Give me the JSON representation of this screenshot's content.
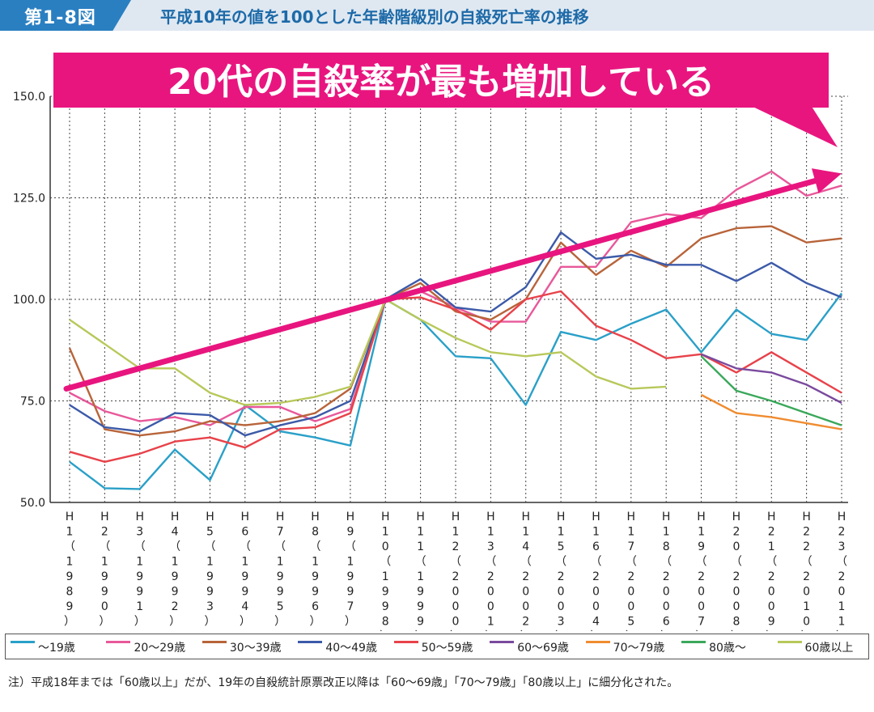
{
  "header": {
    "figure_no": "第1-8図",
    "title": "平成10年の値を100とした年齢階級別の自殺死亡率の推移"
  },
  "annotation": {
    "text": "20代の自殺率が最も増加している",
    "bg_color": "#e8157f",
    "arrow_color": "#e8157f",
    "arrow_from": {
      "x": "H1",
      "y": 78
    },
    "arrow_to": {
      "x": "H23",
      "y": 131
    }
  },
  "note": "注）平成18年までは「60歳以上」だが、19年の自殺統計原票改正以降は「60～69歳」「70～79歳」「80歳以上」に細分化された。",
  "chart_data": {
    "type": "line",
    "title": "平成10年の値を100とした年齢階級別の自殺死亡率の推移",
    "xlabel": "",
    "ylabel": "",
    "ylim": [
      50,
      150
    ],
    "yticks": [
      "50.0",
      "75.0",
      "100.0",
      "125.0",
      "150.0"
    ],
    "grid": true,
    "legend_position": "bottom",
    "categories": [
      "H1",
      "H2",
      "H3",
      "H4",
      "H5",
      "H6",
      "H7",
      "H8",
      "H9",
      "H10",
      "H11",
      "H12",
      "H13",
      "H14",
      "H15",
      "H16",
      "H17",
      "H18",
      "H19",
      "H20",
      "H21",
      "H22",
      "H23"
    ],
    "category_labels": [
      [
        "H",
        "1",
        "（",
        "1",
        "9",
        "8",
        "9",
        "）"
      ],
      [
        "H",
        "2",
        "（",
        "1",
        "9",
        "9",
        "0",
        "）"
      ],
      [
        "H",
        "3",
        "（",
        "1",
        "9",
        "9",
        "1",
        "）"
      ],
      [
        "H",
        "4",
        "（",
        "1",
        "9",
        "9",
        "2",
        "）"
      ],
      [
        "H",
        "5",
        "（",
        "1",
        "9",
        "9",
        "3",
        "）"
      ],
      [
        "H",
        "6",
        "（",
        "1",
        "9",
        "9",
        "4",
        "）"
      ],
      [
        "H",
        "7",
        "（",
        "1",
        "9",
        "9",
        "5",
        "）"
      ],
      [
        "H",
        "8",
        "（",
        "1",
        "9",
        "9",
        "6",
        "）"
      ],
      [
        "H",
        "9",
        "（",
        "1",
        "9",
        "9",
        "7",
        "）"
      ],
      [
        "H",
        "1",
        "0",
        "（",
        "1",
        "9",
        "9",
        "8",
        "）"
      ],
      [
        "H",
        "1",
        "1",
        "（",
        "1",
        "9",
        "9",
        "9",
        "）"
      ],
      [
        "H",
        "1",
        "2",
        "（",
        "2",
        "0",
        "0",
        "0",
        "）"
      ],
      [
        "H",
        "1",
        "3",
        "（",
        "2",
        "0",
        "0",
        "1",
        "）"
      ],
      [
        "H",
        "1",
        "4",
        "（",
        "2",
        "0",
        "0",
        "2",
        "）"
      ],
      [
        "H",
        "1",
        "5",
        "（",
        "2",
        "0",
        "0",
        "3",
        "）"
      ],
      [
        "H",
        "1",
        "6",
        "（",
        "2",
        "0",
        "0",
        "4",
        "）"
      ],
      [
        "H",
        "1",
        "7",
        "（",
        "2",
        "0",
        "0",
        "5",
        "）"
      ],
      [
        "H",
        "1",
        "8",
        "（",
        "2",
        "0",
        "0",
        "6",
        "）"
      ],
      [
        "H",
        "1",
        "9",
        "（",
        "2",
        "0",
        "0",
        "7",
        "）"
      ],
      [
        "H",
        "2",
        "0",
        "（",
        "2",
        "0",
        "0",
        "8",
        "）"
      ],
      [
        "H",
        "2",
        "1",
        "（",
        "2",
        "0",
        "0",
        "9",
        "）"
      ],
      [
        "H",
        "2",
        "2",
        "（",
        "2",
        "0",
        "1",
        "0",
        "）"
      ],
      [
        "H",
        "2",
        "3",
        "（",
        "2",
        "0",
        "1",
        "1",
        "）"
      ]
    ],
    "series": [
      {
        "name": "～19歳",
        "color": "#2aa0c8",
        "values": [
          60,
          53.5,
          53.3,
          63,
          55.5,
          74,
          67.5,
          66,
          64,
          100,
          95,
          86,
          85.5,
          74,
          92,
          90,
          94,
          97.5,
          87,
          97.5,
          91.5,
          90,
          101.5
        ]
      },
      {
        "name": "20～29歳",
        "color": "#e8589a",
        "values": [
          77,
          72.5,
          70,
          71,
          69,
          73.5,
          73.5,
          70,
          73,
          100,
          102,
          98,
          94.5,
          94.5,
          108,
          108,
          119,
          121,
          120,
          127,
          131.5,
          125.5,
          128
        ]
      },
      {
        "name": "30～39歳",
        "color": "#b8643a",
        "values": [
          88,
          68,
          66.5,
          67.5,
          70,
          69,
          70,
          72,
          78,
          100,
          104,
          97,
          95,
          100,
          114,
          106,
          112,
          108,
          115,
          117.5,
          118,
          114,
          115
        ]
      },
      {
        "name": "40～49歳",
        "color": "#3c5aa8",
        "values": [
          74,
          68.5,
          67.5,
          72,
          71.5,
          66.5,
          69,
          71,
          75,
          100,
          105,
          98,
          97,
          103,
          116.5,
          110,
          111,
          108.5,
          108.5,
          104.5,
          109,
          104,
          100.5
        ]
      },
      {
        "name": "50～59歳",
        "color": "#e8424a",
        "values": [
          62.5,
          60,
          62,
          65,
          66,
          63.5,
          68,
          68.5,
          72,
          100,
          100.5,
          97.5,
          92.5,
          100,
          102,
          93.5,
          90,
          85.5,
          86.5,
          82,
          87,
          82,
          77
        ]
      },
      {
        "name": "60～69歳",
        "color": "#7a4a9e",
        "values": [
          null,
          null,
          null,
          null,
          null,
          null,
          null,
          null,
          null,
          null,
          null,
          null,
          null,
          null,
          null,
          null,
          null,
          null,
          86.5,
          83,
          82,
          79,
          74.5
        ]
      },
      {
        "name": "70～79歳",
        "color": "#f08c30",
        "values": [
          null,
          null,
          null,
          null,
          null,
          null,
          null,
          null,
          null,
          null,
          null,
          null,
          null,
          null,
          null,
          null,
          null,
          null,
          76.5,
          72,
          71,
          69.5,
          68
        ]
      },
      {
        "name": "80歳～",
        "color": "#3aa85a",
        "values": [
          null,
          null,
          null,
          null,
          null,
          null,
          null,
          null,
          null,
          null,
          null,
          null,
          null,
          null,
          null,
          null,
          null,
          null,
          86,
          77.5,
          75,
          72,
          69
        ]
      },
      {
        "name": "60歳以上",
        "color": "#b8c85a",
        "values": [
          95,
          89,
          83,
          83,
          77,
          74,
          74.5,
          76,
          78.5,
          100,
          95,
          90.5,
          87,
          86,
          87,
          81,
          78,
          78.5,
          null,
          null,
          null,
          null,
          null
        ]
      }
    ]
  }
}
